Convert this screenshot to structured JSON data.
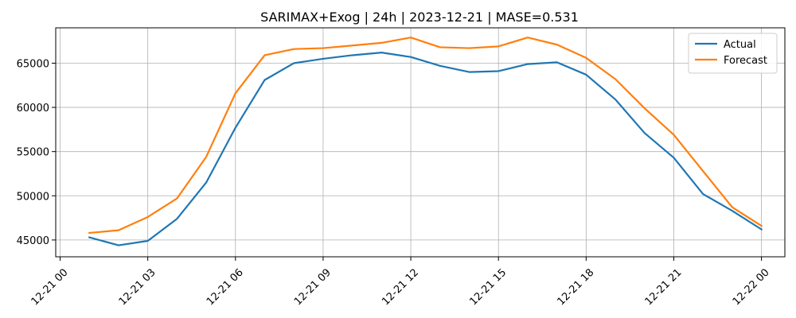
{
  "chart_data": {
    "type": "line",
    "title": "SARIMAX+Exog | 24h | 2023-12-21 | MASE=0.531",
    "xlabel": "",
    "ylabel": "",
    "x_hours": [
      1,
      2,
      3,
      4,
      5,
      6,
      7,
      8,
      9,
      10,
      11,
      12,
      13,
      14,
      15,
      16,
      17,
      18,
      19,
      20,
      21,
      22,
      23,
      24
    ],
    "x_ticks": [
      {
        "hour": 0,
        "label": "12-21 00"
      },
      {
        "hour": 3,
        "label": "12-21 03"
      },
      {
        "hour": 6,
        "label": "12-21 06"
      },
      {
        "hour": 9,
        "label": "12-21 09"
      },
      {
        "hour": 12,
        "label": "12-21 12"
      },
      {
        "hour": 15,
        "label": "12-21 15"
      },
      {
        "hour": 18,
        "label": "12-21 18"
      },
      {
        "hour": 21,
        "label": "12-21 21"
      },
      {
        "hour": 24,
        "label": "12-22 00"
      }
    ],
    "y_ticks": [
      45000,
      50000,
      55000,
      60000,
      65000
    ],
    "y_tick_labels": [
      "45000",
      "50000",
      "55000",
      "60000",
      "65000"
    ],
    "xlim": [
      -0.15,
      24.8
    ],
    "ylim": [
      43100,
      69000
    ],
    "grid": true,
    "legend_position": "top-right",
    "series": [
      {
        "name": "Actual",
        "color": "#1f77b4",
        "values": [
          45300,
          44400,
          44900,
          47400,
          51500,
          57700,
          63100,
          65000,
          65500,
          65900,
          66200,
          65700,
          64700,
          64000,
          64100,
          64900,
          65100,
          63700,
          60900,
          57100,
          54300,
          50200,
          48300,
          46200
        ]
      },
      {
        "name": "Forecast",
        "color": "#ff7f0e",
        "values": [
          45800,
          46100,
          47600,
          49700,
          54400,
          61600,
          65900,
          66600,
          66700,
          67000,
          67300,
          67900,
          66800,
          66700,
          66900,
          67900,
          67100,
          65600,
          63200,
          59900,
          56900,
          52800,
          48700,
          46600
        ]
      }
    ]
  }
}
